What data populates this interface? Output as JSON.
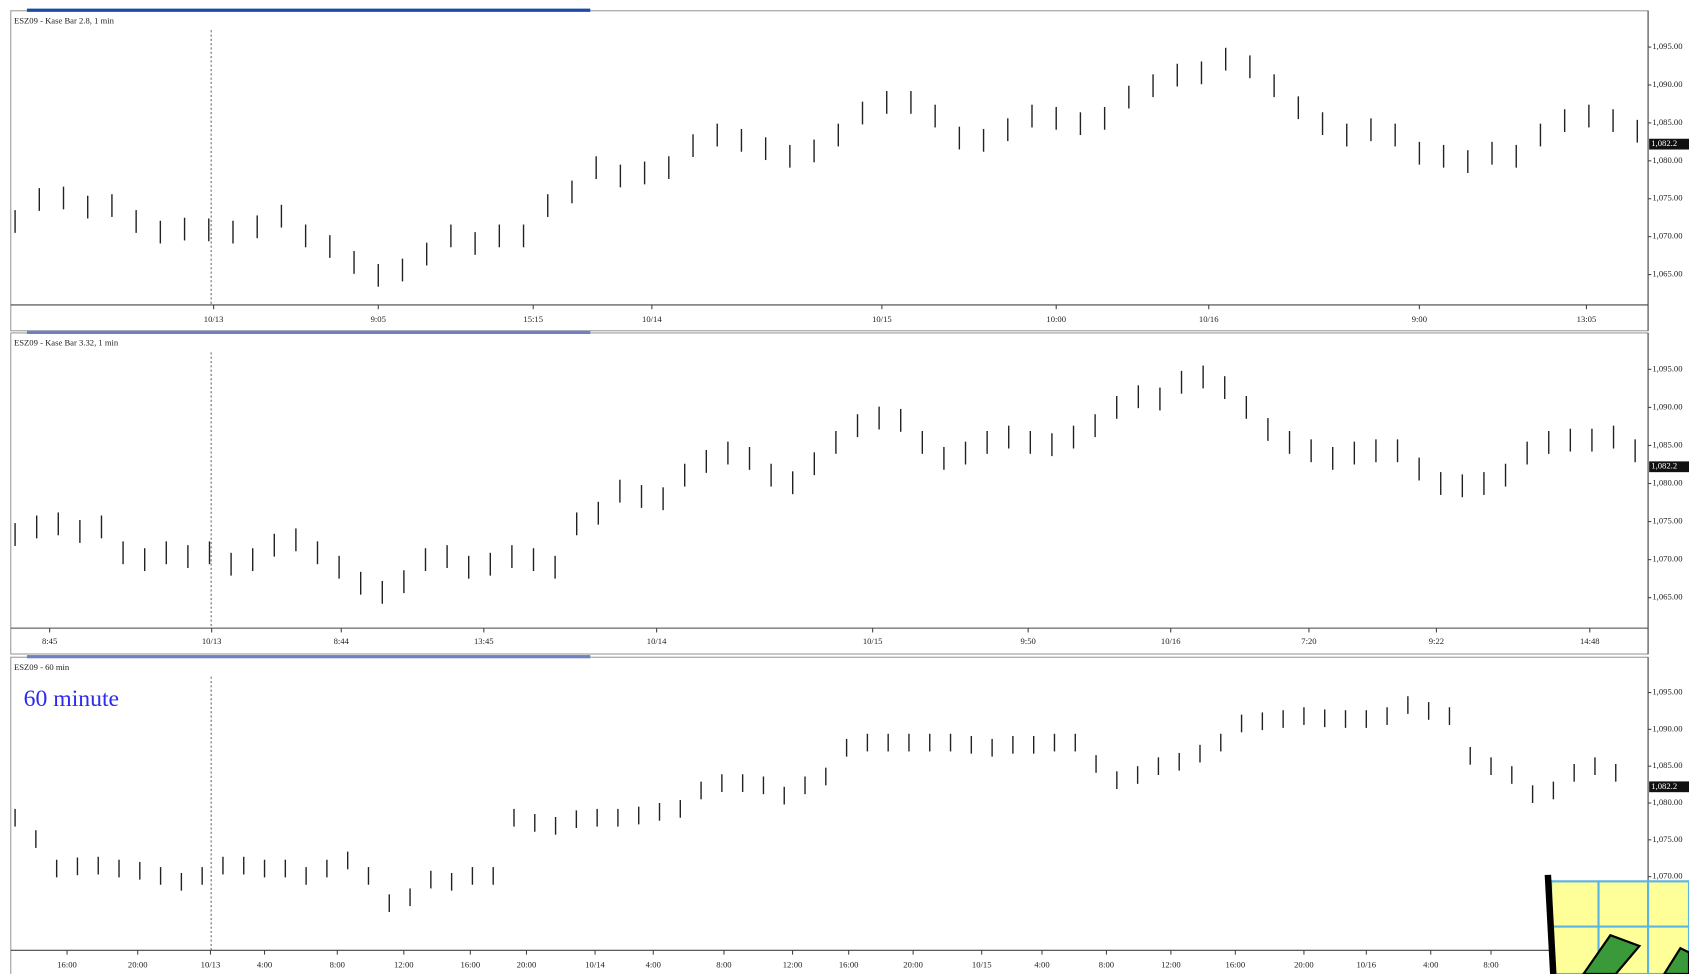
{
  "chart_data": [
    {
      "type": "hlbar",
      "title": "ESZ09 - Kase Bar 2.8, 1 min",
      "color": "#222222",
      "ylim": [
        1061,
        1099.5
      ],
      "yticks": [
        {
          "value": 1095,
          "label": "1,095.00"
        },
        {
          "value": 1090,
          "label": "1,090.00"
        },
        {
          "value": 1085,
          "label": "1,085.00"
        },
        {
          "value": 1080,
          "label": "1,080.00"
        },
        {
          "value": 1075,
          "label": "1,075.00"
        },
        {
          "value": 1070,
          "label": "1,070.00"
        },
        {
          "value": 1065,
          "label": "1,065.00"
        }
      ],
      "xticks": [
        {
          "value": 8.2,
          "label": "10/13"
        },
        {
          "value": 15,
          "label": "9:05"
        },
        {
          "value": 21.4,
          "label": "15:15"
        },
        {
          "value": 26.3,
          "label": "10/14"
        },
        {
          "value": 35.8,
          "label": "10/15"
        },
        {
          "value": 43,
          "label": "10:00"
        },
        {
          "value": 49.3,
          "label": "10/16"
        },
        {
          "value": 58,
          "label": "9:00"
        },
        {
          "value": 64.9,
          "label": "13:05"
        }
      ],
      "last": {
        "value": 1082.2,
        "label": "1,082.2"
      },
      "high": [
        1073.5,
        1076.4,
        1076.6,
        1075.4,
        1075.6,
        1073.5,
        1072.1,
        1072.5,
        1072.4,
        1072.1,
        1072.8,
        1074.2,
        1071.6,
        1070.2,
        1068.1,
        1066.4,
        1067.1,
        1069.2,
        1071.6,
        1070.6,
        1071.6,
        1071.6,
        1075.6,
        1077.4,
        1080.6,
        1079.5,
        1079.9,
        1080.6,
        1083.5,
        1084.9,
        1084.2,
        1083.1,
        1082.1,
        1082.8,
        1084.9,
        1087.8,
        1089.2,
        1089.2,
        1087.4,
        1084.5,
        1084.2,
        1085.6,
        1087.4,
        1087.1,
        1086.4,
        1087.1,
        1089.9,
        1091.4,
        1092.8,
        1093.1,
        1094.9,
        1093.9,
        1091.4,
        1088.5,
        1086.4,
        1084.9,
        1085.6,
        1084.9,
        1082.5,
        1082.1,
        1081.4,
        1082.5,
        1082.1,
        1084.9,
        1086.8,
        1087.4,
        1086.8,
        1085.4
      ],
      "low": [
        1070.5,
        1073.4,
        1073.6,
        1072.4,
        1072.6,
        1070.5,
        1069.1,
        1069.5,
        1069.4,
        1069.1,
        1069.8,
        1071.2,
        1068.6,
        1067.2,
        1065.1,
        1063.4,
        1064.1,
        1066.2,
        1068.6,
        1067.6,
        1068.6,
        1068.6,
        1072.6,
        1074.4,
        1077.6,
        1076.5,
        1076.9,
        1077.6,
        1080.5,
        1081.9,
        1081.2,
        1080.1,
        1079.1,
        1079.8,
        1081.9,
        1084.8,
        1086.2,
        1086.2,
        1084.4,
        1081.5,
        1081.2,
        1082.6,
        1084.4,
        1084.1,
        1083.4,
        1084.1,
        1086.9,
        1088.4,
        1089.8,
        1090.1,
        1091.9,
        1090.9,
        1088.4,
        1085.5,
        1083.4,
        1081.9,
        1082.6,
        1081.9,
        1079.5,
        1079.1,
        1078.4,
        1079.5,
        1079.1,
        1081.9,
        1083.8,
        1084.4,
        1083.8,
        1082.4
      ]
    },
    {
      "type": "hlbar",
      "title": "ESZ09 - Kase Bar 3.32, 1 min",
      "color": "#222222",
      "ylim": [
        1061,
        1099.5
      ],
      "yticks": [
        {
          "value": 1095,
          "label": "1,095.00"
        },
        {
          "value": 1090,
          "label": "1,090.00"
        },
        {
          "value": 1085,
          "label": "1,085.00"
        },
        {
          "value": 1080,
          "label": "1,080.00"
        },
        {
          "value": 1075,
          "label": "1,075.00"
        },
        {
          "value": 1070,
          "label": "1,070.00"
        },
        {
          "value": 1065,
          "label": "1,065.00"
        }
      ],
      "xticks": [
        {
          "value": 1.6,
          "label": "8:45"
        },
        {
          "value": 9.1,
          "label": "10/13"
        },
        {
          "value": 15.1,
          "label": "8:44"
        },
        {
          "value": 21.7,
          "label": "13:45"
        },
        {
          "value": 29.7,
          "label": "10/14"
        },
        {
          "value": 39.7,
          "label": "10/15"
        },
        {
          "value": 46.9,
          "label": "9:50"
        },
        {
          "value": 53.5,
          "label": "10/16"
        },
        {
          "value": 59.9,
          "label": "7:20"
        },
        {
          "value": 65.8,
          "label": "9:22"
        },
        {
          "value": 72.9,
          "label": "14:48"
        }
      ],
      "last": {
        "value": 1082.2,
        "label": "1,082.2"
      },
      "high": [
        1074.8,
        1075.8,
        1076.2,
        1075.2,
        1075.8,
        1072.4,
        1071.5,
        1072.4,
        1071.9,
        1072.4,
        1070.9,
        1071.5,
        1073.4,
        1074.1,
        1072.4,
        1070.5,
        1068.4,
        1067.2,
        1068.6,
        1071.5,
        1071.9,
        1070.5,
        1070.9,
        1071.9,
        1071.5,
        1070.5,
        1076.2,
        1077.6,
        1080.5,
        1079.8,
        1079.5,
        1082.6,
        1084.4,
        1085.5,
        1084.8,
        1082.6,
        1081.6,
        1084.1,
        1086.9,
        1089.1,
        1090.1,
        1089.8,
        1086.9,
        1084.8,
        1085.5,
        1086.9,
        1087.6,
        1086.9,
        1086.6,
        1087.6,
        1089.1,
        1091.5,
        1092.9,
        1092.6,
        1094.8,
        1095.5,
        1094.1,
        1091.5,
        1088.6,
        1086.9,
        1085.8,
        1084.8,
        1085.5,
        1085.8,
        1085.8,
        1083.4,
        1081.5,
        1081.2,
        1081.5,
        1082.6,
        1085.5,
        1086.9,
        1087.2,
        1087.2,
        1087.6,
        1085.8
      ],
      "low": [
        1071.8,
        1072.8,
        1073.2,
        1072.2,
        1072.8,
        1069.4,
        1068.5,
        1069.4,
        1068.9,
        1069.4,
        1067.9,
        1068.5,
        1070.4,
        1071.1,
        1069.4,
        1067.5,
        1065.4,
        1064.2,
        1065.6,
        1068.5,
        1068.9,
        1067.5,
        1067.9,
        1068.9,
        1068.5,
        1067.5,
        1073.2,
        1074.6,
        1077.5,
        1076.8,
        1076.5,
        1079.6,
        1081.4,
        1082.5,
        1081.8,
        1079.6,
        1078.6,
        1081.1,
        1083.9,
        1086.1,
        1087.1,
        1086.8,
        1083.9,
        1081.8,
        1082.5,
        1083.9,
        1084.6,
        1083.9,
        1083.6,
        1084.6,
        1086.1,
        1088.5,
        1089.9,
        1089.6,
        1091.8,
        1092.5,
        1091.1,
        1088.5,
        1085.6,
        1083.9,
        1082.8,
        1081.8,
        1082.5,
        1082.8,
        1082.8,
        1080.4,
        1078.5,
        1078.2,
        1078.5,
        1079.6,
        1082.5,
        1083.9,
        1084.2,
        1084.2,
        1084.6,
        1082.8
      ]
    },
    {
      "type": "hlbar",
      "title": "ESZ09 - 60 min",
      "annotation": "60 minute",
      "color": "#222222",
      "ylim": [
        1060,
        1099.5
      ],
      "yticks": [
        {
          "value": 1095,
          "label": "1,095.00"
        },
        {
          "value": 1090,
          "label": "1,090.00"
        },
        {
          "value": 1085,
          "label": "1,085.00"
        },
        {
          "value": 1080,
          "label": "1,080.00"
        },
        {
          "value": 1075,
          "label": "1,075.00"
        },
        {
          "value": 1070,
          "label": "1,070.00"
        }
      ],
      "xticks": [
        {
          "value": 2.5,
          "label": "16:00"
        },
        {
          "value": 5.9,
          "label": "20:00"
        },
        {
          "value": 9.4,
          "label": "10/13"
        },
        {
          "value": 12,
          "label": "4:00"
        },
        {
          "value": 15.5,
          "label": "8:00"
        },
        {
          "value": 18.7,
          "label": "12:00"
        },
        {
          "value": 21.9,
          "label": "16:00"
        },
        {
          "value": 24.6,
          "label": "20:00"
        },
        {
          "value": 27.9,
          "label": "10/14"
        },
        {
          "value": 30.7,
          "label": "4:00"
        },
        {
          "value": 34.1,
          "label": "8:00"
        },
        {
          "value": 37.4,
          "label": "12:00"
        },
        {
          "value": 40.1,
          "label": "16:00"
        },
        {
          "value": 43.2,
          "label": "20:00"
        },
        {
          "value": 46.5,
          "label": "10/15"
        },
        {
          "value": 49.4,
          "label": "4:00"
        },
        {
          "value": 52.5,
          "label": "8:00"
        },
        {
          "value": 55.6,
          "label": "12:00"
        },
        {
          "value": 58.7,
          "label": "16:00"
        },
        {
          "value": 62,
          "label": "20:00"
        },
        {
          "value": 65,
          "label": "10/16"
        },
        {
          "value": 68.1,
          "label": "4:00"
        },
        {
          "value": 71,
          "label": "8:00"
        }
      ],
      "last": {
        "value": 1082.2,
        "label": "1,082.2"
      },
      "high": [
        1079.2,
        1076.3,
        1072.3,
        1072.6,
        1072.7,
        1072.3,
        1072.0,
        1071.3,
        1070.5,
        1071.3,
        1072.7,
        1072.7,
        1072.3,
        1072.3,
        1071.3,
        1072.3,
        1073.4,
        1071.3,
        1067.6,
        1068.4,
        1070.8,
        1070.5,
        1071.3,
        1071.3,
        1079.2,
        1078.5,
        1078.1,
        1079.0,
        1079.2,
        1079.2,
        1079.5,
        1080.0,
        1080.4,
        1082.9,
        1083.9,
        1083.9,
        1083.6,
        1082.2,
        1083.6,
        1084.8,
        1088.7,
        1089.4,
        1089.4,
        1089.4,
        1089.4,
        1089.4,
        1089.1,
        1088.7,
        1089.1,
        1089.1,
        1089.4,
        1089.4,
        1086.5,
        1084.3,
        1085.0,
        1086.2,
        1086.8,
        1087.9,
        1089.4,
        1092.0,
        1092.3,
        1092.6,
        1093.0,
        1092.7,
        1092.6,
        1092.6,
        1093.0,
        1094.5,
        1093.7,
        1093.0,
        1087.6,
        1086.2,
        1085.0,
        1082.4,
        1082.9,
        1085.3,
        1086.2,
        1085.3
      ],
      "low": [
        1076.8,
        1073.9,
        1069.9,
        1070.2,
        1070.3,
        1069.9,
        1069.6,
        1068.9,
        1068.1,
        1068.9,
        1070.3,
        1070.3,
        1069.9,
        1069.9,
        1068.9,
        1069.9,
        1071.0,
        1068.9,
        1065.2,
        1066.0,
        1068.4,
        1068.1,
        1068.9,
        1068.9,
        1076.8,
        1076.1,
        1075.7,
        1076.6,
        1076.8,
        1076.8,
        1077.1,
        1077.6,
        1078.0,
        1080.5,
        1081.5,
        1081.5,
        1081.2,
        1079.8,
        1081.2,
        1082.4,
        1086.3,
        1087.0,
        1087.0,
        1087.0,
        1087.0,
        1087.0,
        1086.7,
        1086.3,
        1086.7,
        1086.7,
        1087.0,
        1087.0,
        1084.1,
        1081.9,
        1082.6,
        1083.8,
        1084.4,
        1085.5,
        1087.0,
        1089.6,
        1089.9,
        1090.2,
        1090.6,
        1090.3,
        1090.2,
        1090.2,
        1090.6,
        1092.1,
        1091.3,
        1090.6,
        1085.2,
        1083.8,
        1082.6,
        1080.0,
        1080.5,
        1082.9,
        1083.8,
        1082.9
      ]
    }
  ]
}
